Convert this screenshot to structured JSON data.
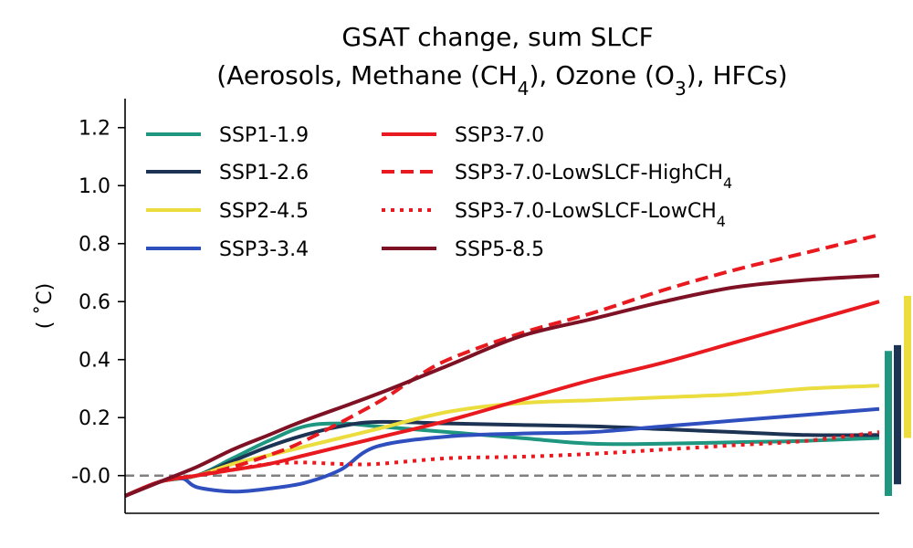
{
  "chart_data": {
    "type": "line",
    "title_line1": "GSAT change, sum SLCF",
    "title_line2_parts": [
      {
        "t": "(Aerosols, Methane (CH"
      },
      {
        "t": "4",
        "sub": true
      },
      {
        "t": "), Ozone (O"
      },
      {
        "t": "3",
        "sub": true
      },
      {
        "t": "), HFCs)"
      }
    ],
    "ylabel": "( ˚C)",
    "xlabel": "",
    "ylim": [
      -0.13,
      1.3
    ],
    "xlim": [
      1995,
      2100
    ],
    "yticks": [
      "-0.0",
      "0.2",
      "0.4",
      "0.6",
      "0.8",
      "1.0",
      "1.2"
    ],
    "ytick_values": [
      0.0,
      0.2,
      0.4,
      0.6,
      0.8,
      1.0,
      1.2
    ],
    "zero_line": {
      "y": 0.0,
      "color": "#808080",
      "style": "dashed"
    },
    "legend_position": "top-left, two columns",
    "series": [
      {
        "name": "SSP1-1.9",
        "label_parts": [
          {
            "t": "SSP1-1.9"
          }
        ],
        "color": "#1e9680",
        "dash": "solid",
        "x": [
          1995,
          2000,
          2005,
          2010,
          2015,
          2020,
          2025,
          2030,
          2040,
          2050,
          2060,
          2070,
          2080,
          2090,
          2100
        ],
        "y": [
          -0.07,
          -0.02,
          0.0,
          0.06,
          0.12,
          0.17,
          0.18,
          0.17,
          0.15,
          0.13,
          0.11,
          0.11,
          0.115,
          0.12,
          0.13
        ]
      },
      {
        "name": "SSP1-2.6",
        "label_parts": [
          {
            "t": "SSP1-2.6"
          }
        ],
        "color": "#1d3354",
        "dash": "solid",
        "x": [
          1995,
          2000,
          2005,
          2010,
          2015,
          2020,
          2025,
          2030,
          2040,
          2050,
          2060,
          2070,
          2080,
          2090,
          2100
        ],
        "y": [
          -0.07,
          -0.02,
          0.0,
          0.05,
          0.1,
          0.14,
          0.17,
          0.185,
          0.18,
          0.175,
          0.17,
          0.16,
          0.15,
          0.14,
          0.14
        ]
      },
      {
        "name": "SSP2-4.5",
        "label_parts": [
          {
            "t": "SSP2-4.5"
          }
        ],
        "color": "#eadd3d",
        "dash": "solid",
        "x": [
          1995,
          2000,
          2005,
          2010,
          2015,
          2020,
          2025,
          2030,
          2040,
          2050,
          2060,
          2070,
          2080,
          2090,
          2100
        ],
        "y": [
          -0.07,
          -0.02,
          0.0,
          0.04,
          0.07,
          0.1,
          0.13,
          0.16,
          0.22,
          0.25,
          0.26,
          0.27,
          0.28,
          0.3,
          0.31
        ]
      },
      {
        "name": "SSP3-3.4",
        "label_parts": [
          {
            "t": "SSP3-3.4"
          }
        ],
        "color": "#2f4fbf",
        "dash": "solid",
        "x": [
          1995,
          2000,
          2003,
          2005,
          2010,
          2015,
          2020,
          2025,
          2030,
          2040,
          2050,
          2060,
          2070,
          2080,
          2090,
          2100
        ],
        "y": [
          -0.07,
          -0.02,
          -0.01,
          -0.04,
          -0.055,
          -0.045,
          -0.025,
          0.02,
          0.1,
          0.135,
          0.145,
          0.15,
          0.17,
          0.19,
          0.21,
          0.23
        ]
      },
      {
        "name": "SSP3-7.0",
        "label_parts": [
          {
            "t": "SSP3-7.0"
          }
        ],
        "color": "#e8191f",
        "dash": "solid",
        "x": [
          1995,
          2000,
          2005,
          2010,
          2015,
          2020,
          2030,
          2040,
          2050,
          2060,
          2070,
          2080,
          2090,
          2100
        ],
        "y": [
          -0.07,
          -0.02,
          0.0,
          0.02,
          0.04,
          0.07,
          0.13,
          0.19,
          0.26,
          0.33,
          0.39,
          0.46,
          0.53,
          0.6
        ]
      },
      {
        "name": "SSP3-7.0-LowSLCF-HighCH4",
        "label_parts": [
          {
            "t": "SSP3-7.0-LowSLCF-HighCH"
          },
          {
            "t": "4",
            "sub": true
          }
        ],
        "color": "#e8191f",
        "dash": "dashed",
        "x": [
          1995,
          2000,
          2005,
          2010,
          2015,
          2020,
          2030,
          2035,
          2040,
          2050,
          2060,
          2070,
          2080,
          2090,
          2100
        ],
        "y": [
          -0.07,
          -0.02,
          0.0,
          0.03,
          0.07,
          0.12,
          0.25,
          0.33,
          0.4,
          0.49,
          0.56,
          0.64,
          0.71,
          0.77,
          0.83
        ]
      },
      {
        "name": "SSP3-7.0-LowSLCF-LowCH4",
        "label_parts": [
          {
            "t": "SSP3-7.0-LowSLCF-LowCH"
          },
          {
            "t": "4",
            "sub": true
          }
        ],
        "color": "#e8191f",
        "dash": "dotted",
        "x": [
          1995,
          2000,
          2005,
          2010,
          2015,
          2020,
          2025,
          2030,
          2040,
          2050,
          2060,
          2070,
          2080,
          2090,
          2100
        ],
        "y": [
          -0.07,
          -0.02,
          0.0,
          0.02,
          0.04,
          0.045,
          0.04,
          0.04,
          0.06,
          0.065,
          0.075,
          0.09,
          0.105,
          0.12,
          0.15
        ]
      },
      {
        "name": "SSP5-8.5",
        "label_parts": [
          {
            "t": "SSP5-8.5"
          }
        ],
        "color": "#7e1124",
        "dash": "solid",
        "x": [
          1995,
          2000,
          2005,
          2010,
          2015,
          2020,
          2030,
          2040,
          2050,
          2060,
          2070,
          2080,
          2090,
          2100
        ],
        "y": [
          -0.07,
          -0.02,
          0.03,
          0.09,
          0.14,
          0.19,
          0.28,
          0.38,
          0.48,
          0.54,
          0.6,
          0.65,
          0.675,
          0.69
        ]
      }
    ],
    "range_bars": [
      {
        "name": "SSP1-1.9 range",
        "color": "#1e9680",
        "low": -0.07,
        "high": 0.43
      },
      {
        "name": "SSP1-2.6 range",
        "color": "#1d3354",
        "low": -0.03,
        "high": 0.45
      },
      {
        "name": "SSP2-4.5 range",
        "color": "#eadd3d",
        "low": 0.13,
        "high": 0.62
      }
    ]
  }
}
